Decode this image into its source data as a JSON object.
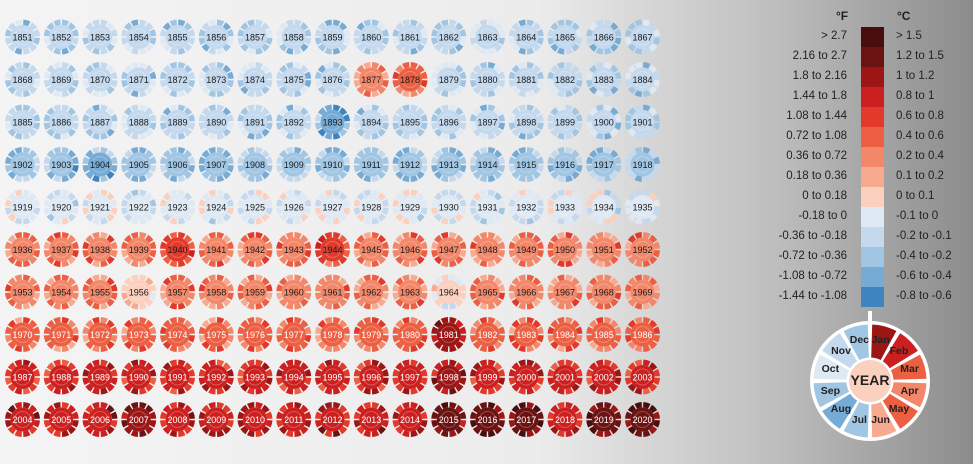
{
  "chart_data": {
    "type": "heatmap",
    "layout": "radial",
    "unit_f_label": "°F",
    "unit_c_label": "°C",
    "legend": [
      {
        "f": "> 2.7",
        "c": "> 1.5",
        "color": "#4a0d0d"
      },
      {
        "f": "2.16 to 2.7",
        "c": "1.2 to 1.5",
        "color": "#6b1212"
      },
      {
        "f": "1.8 to 2.16",
        "c": "1 to 1.2",
        "color": "#9c1616"
      },
      {
        "f": "1.44 to 1.8",
        "c": "0.8 to 1",
        "color": "#cc1f1f"
      },
      {
        "f": "1.08 to 1.44",
        "c": "0.6 to 0.8",
        "color": "#e23a2a"
      },
      {
        "f": "0.72 to 1.08",
        "c": "0.4 to 0.6",
        "color": "#ec5f43"
      },
      {
        "f": "0.36 to 0.72",
        "c": "0.2 to 0.4",
        "color": "#f3876a"
      },
      {
        "f": "0.18 to 0.36",
        "c": "0.1 to 0.2",
        "color": "#f8aa90"
      },
      {
        "f": "0 to 0.18",
        "c": "0 to 0.1",
        "color": "#fbd0bf"
      },
      {
        "f": "-0.18 to 0",
        "c": "-0.1 to 0",
        "color": "#dfe9f4"
      },
      {
        "f": "-0.36 to -0.18",
        "c": "-0.2 to -0.1",
        "color": "#c4d9ee"
      },
      {
        "f": "-0.72 to -0.36",
        "c": "-0.4 to -0.2",
        "color": "#a1c6e4"
      },
      {
        "f": "-1.08 to -0.72",
        "c": "-0.6 to -0.4",
        "color": "#76abd6"
      },
      {
        "f": "-1.44 to -1.08",
        "c": "-0.8 to -0.6",
        "color": "#3e84c1"
      }
    ],
    "key": {
      "center_label": "YEAR",
      "months": [
        "Jan",
        "Feb",
        "Mar",
        "Apr",
        "May",
        "Jun",
        "Jul",
        "Aug",
        "Sep",
        "Oct",
        "Nov",
        "Dec"
      ],
      "example_levels": [
        2,
        3,
        5,
        6,
        5,
        7,
        11,
        12,
        11,
        9,
        10,
        11
      ]
    },
    "years_per_row": 17,
    "years": [
      "1851",
      "1852",
      "1853",
      "1854",
      "1855",
      "1856",
      "1857",
      "1858",
      "1859",
      "1860",
      "1861",
      "1862",
      "1863",
      "1864",
      "1865",
      "1866",
      "1867",
      "1868",
      "1869",
      "1870",
      "1871",
      "1872",
      "1873",
      "1874",
      "1875",
      "1876",
      "1877",
      "1878",
      "1879",
      "1880",
      "1881",
      "1882",
      "1883",
      "1884",
      "1885",
      "1886",
      "1887",
      "1888",
      "1889",
      "1890",
      "1891",
      "1892",
      "1893",
      "1894",
      "1895",
      "1896",
      "1897",
      "1898",
      "1899",
      "1900",
      "1901",
      "1902",
      "1903",
      "1904",
      "1905",
      "1906",
      "1907",
      "1908",
      "1909",
      "1910",
      "1911",
      "1912",
      "1913",
      "1914",
      "1915",
      "1916",
      "1917",
      "1918",
      "1919",
      "1920",
      "1921",
      "1922",
      "1923",
      "1924",
      "1925",
      "1926",
      "1927",
      "1928",
      "1929",
      "1930",
      "1931",
      "1932",
      "1933",
      "1934",
      "1935",
      "1936",
      "1937",
      "1938",
      "1939",
      "1940",
      "1941",
      "1942",
      "1943",
      "1944",
      "1945",
      "1946",
      "1947",
      "1948",
      "1949",
      "1950",
      "1951",
      "1952",
      "1953",
      "1954",
      "1955",
      "1956",
      "1957",
      "1958",
      "1959",
      "1960",
      "1961",
      "1962",
      "1963",
      "1964",
      "1965",
      "1966",
      "1967",
      "1968",
      "1969",
      "1970",
      "1971",
      "1972",
      "1973",
      "1974",
      "1975",
      "1976",
      "1977",
      "1978",
      "1979",
      "1980",
      "1981",
      "1982",
      "1983",
      "1984",
      "1985",
      "1986",
      "1987",
      "1988",
      "1989",
      "1990",
      "1991",
      "1992",
      "1993",
      "1994",
      "1995",
      "1996",
      "1997",
      "1998",
      "1999",
      "2000",
      "2001",
      "2002",
      "2003",
      "2004",
      "2005",
      "2006",
      "2007",
      "2008",
      "2009",
      "2010",
      "2011",
      "2012",
      "2013",
      "2014",
      "2015",
      "2016",
      "2017",
      "2018",
      "2019",
      "2020"
    ],
    "row_base_level": [
      10.5,
      10.2,
      10.4,
      11.0,
      9.2,
      5.6,
      5.7,
      5.2,
      3.4,
      2.8
    ],
    "overrides": {
      "1877": 6.0,
      "1878": 5.4,
      "1893": 11.8,
      "1904": 11.6,
      "1903": 11.3,
      "1940": 4.4,
      "1944": 4.2,
      "1964": 8.4,
      "1956": 7.8,
      "1981": 2.0,
      "1998": 2.1,
      "2016": 0.6,
      "2017": 0.9,
      "2019": 1.0,
      "2020": 0.9,
      "2015": 1.3,
      "2007": 1.9
    }
  }
}
